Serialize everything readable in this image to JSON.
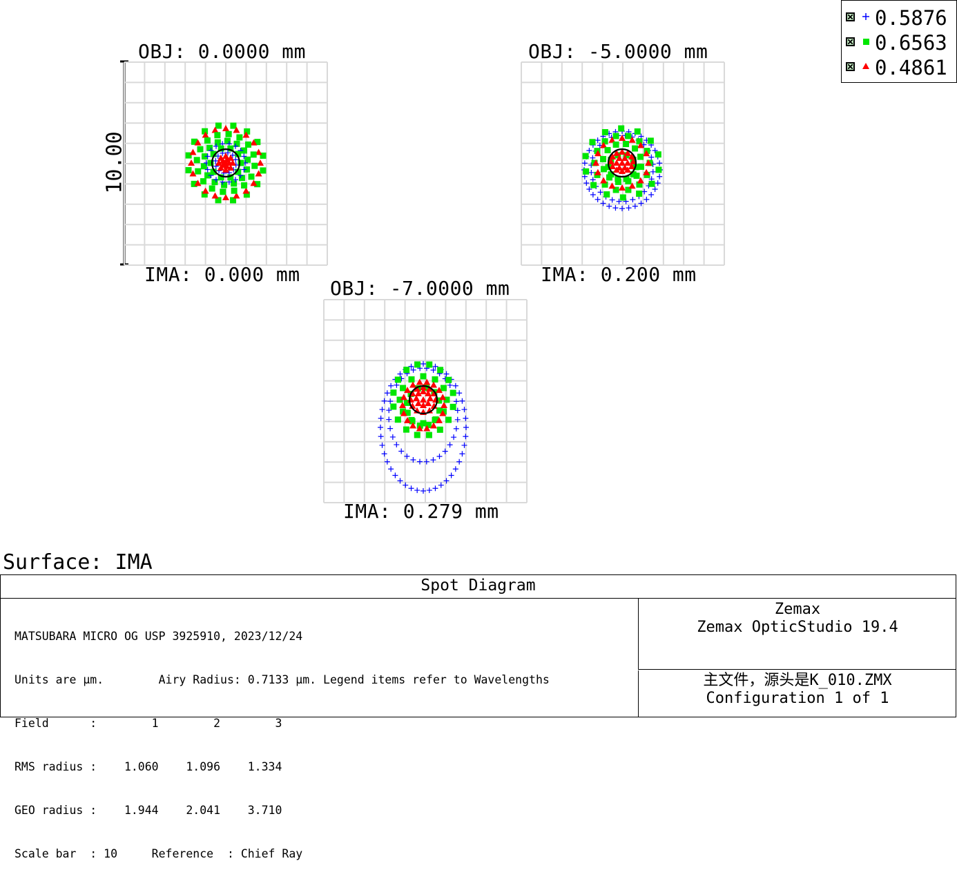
{
  "legend": {
    "items": [
      {
        "label": "0.5876",
        "symbol": "plus",
        "color": "#0000ff"
      },
      {
        "label": "0.6563",
        "symbol": "square",
        "color": "#00e600"
      },
      {
        "label": "0.4861",
        "symbol": "triangle",
        "color": "#ff0000"
      }
    ]
  },
  "scale_bar_label": "10.00",
  "chart_data": [
    {
      "type": "scatter",
      "title": "OBJ: 0.0000 mm",
      "xlabel": "IMA: 0.000 mm",
      "field": 1,
      "rms_radius": 1.06,
      "geo_radius": 1.944
    },
    {
      "type": "scatter",
      "title": "OBJ: -5.0000 mm",
      "xlabel": "IMA: 0.200 mm",
      "field": 2,
      "rms_radius": 1.096,
      "geo_radius": 2.041
    },
    {
      "type": "scatter",
      "title": "OBJ: -7.0000 mm",
      "xlabel": "IMA: 0.279 mm",
      "field": 3,
      "rms_radius": 1.334,
      "geo_radius": 3.71
    }
  ],
  "surface_label": "Surface: IMA",
  "info": {
    "title": "Spot Diagram",
    "lines": [
      "MATSUBARA MICRO OG USP 3925910, 2023/12/24",
      "Units are µm.        Airy Radius: 0.7133 µm. Legend items refer to Wavelengths",
      "Field      :        1        2        3",
      "RMS radius :    1.060    1.096    1.334",
      "GEO radius :    1.944    2.041    3.710",
      "Scale bar  : 10     Reference  : Chief Ray"
    ],
    "company": "Zemax",
    "product": "Zemax OpticStudio 19.4",
    "file": "主文件，源头是K_010.ZMX",
    "config": "Configuration 1 of 1"
  }
}
